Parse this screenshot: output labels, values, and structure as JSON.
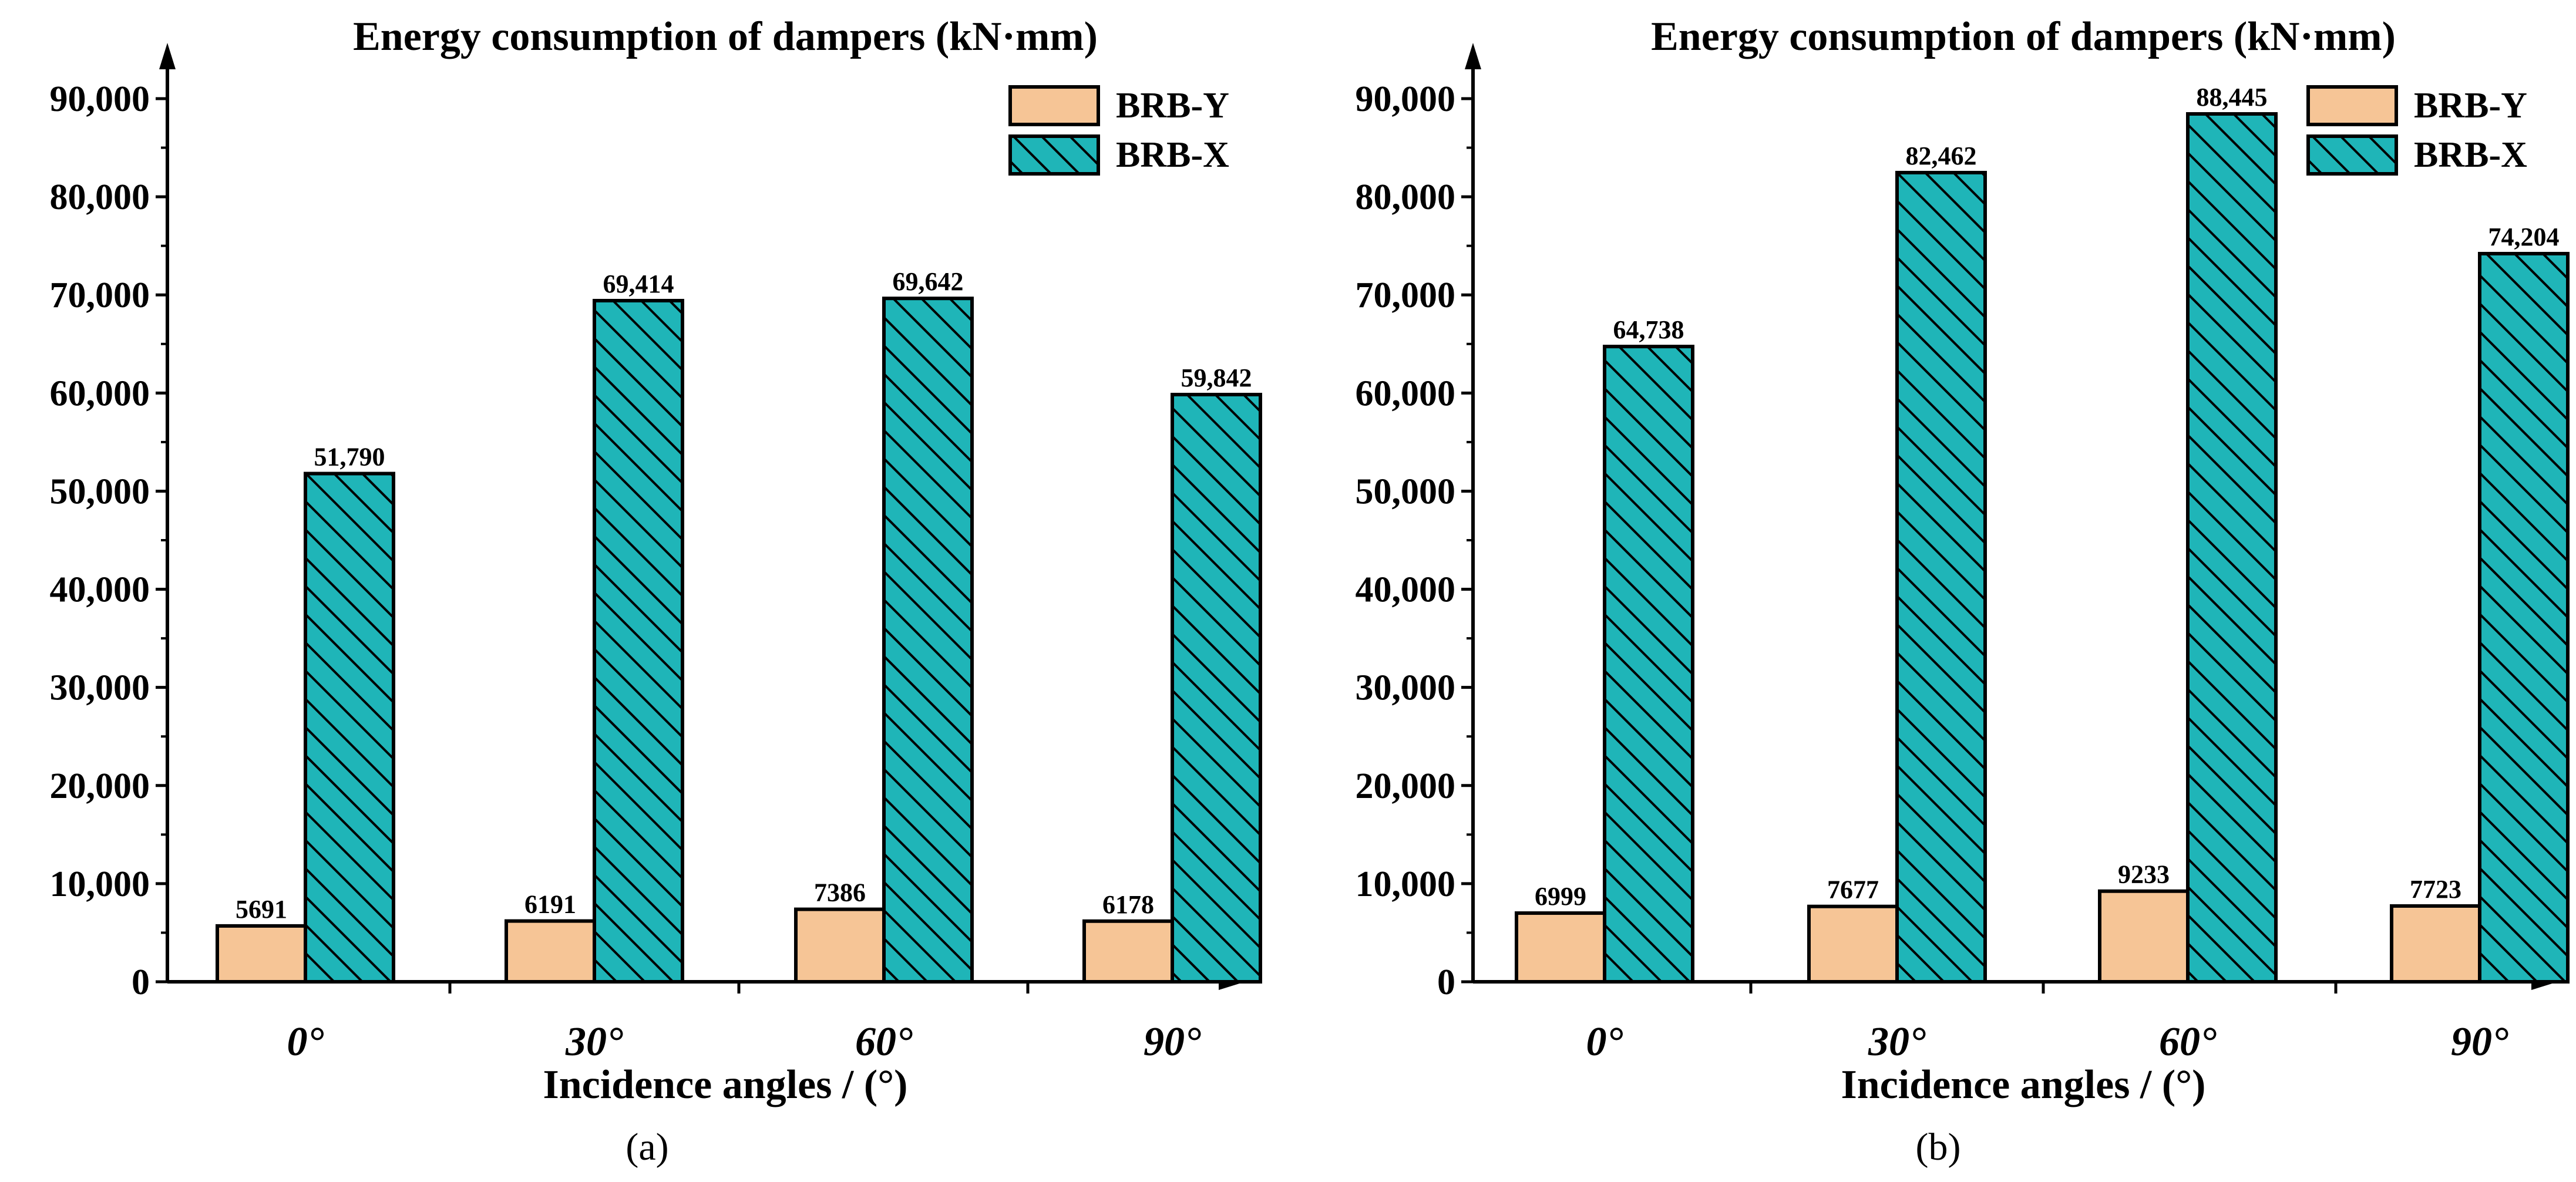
{
  "figure": {
    "panels": [
      "(a)",
      "(b)"
    ]
  },
  "colors": {
    "brb_y": "#F6C596",
    "brb_x": "#1FB5B8",
    "edge": "#000000"
  },
  "chart_data": [
    {
      "type": "bar",
      "panel_label": "(a)",
      "title": "Energy consumption of dampers (kN·mm)",
      "xlabel": "Incidence angles / (°)",
      "ylabel": "",
      "ylim": [
        0,
        90000
      ],
      "yticks": [
        0,
        10000,
        20000,
        30000,
        40000,
        50000,
        60000,
        70000,
        80000,
        90000
      ],
      "ytick_labels": [
        "0",
        "10,000",
        "20,000",
        "30,000",
        "40,000",
        "50,000",
        "60,000",
        "70,000",
        "80,000",
        "90,000"
      ],
      "categories": [
        "0°",
        "30°",
        "60°",
        "90°"
      ],
      "series": [
        {
          "name": "BRB-Y",
          "values": [
            5691,
            6191,
            7386,
            6178
          ],
          "labels": [
            "5691",
            "6191",
            "7386",
            "6178"
          ]
        },
        {
          "name": "BRB-X",
          "values": [
            51790,
            69414,
            69642,
            59842
          ],
          "labels": [
            "51,790",
            "69,414",
            "69,642",
            "59,842"
          ]
        }
      ],
      "legend": "top-right",
      "grid": false
    },
    {
      "type": "bar",
      "panel_label": "(b)",
      "title": "Energy consumption of dampers (kN·mm)",
      "xlabel": "Incidence angles / (°)",
      "ylabel": "",
      "ylim": [
        0,
        90000
      ],
      "yticks": [
        0,
        10000,
        20000,
        30000,
        40000,
        50000,
        60000,
        70000,
        80000,
        90000
      ],
      "ytick_labels": [
        "0",
        "10,000",
        "20,000",
        "30,000",
        "40,000",
        "50,000",
        "60,000",
        "70,000",
        "80,000",
        "90,000"
      ],
      "categories": [
        "0°",
        "30°",
        "60°",
        "90°"
      ],
      "series": [
        {
          "name": "BRB-Y",
          "values": [
            6999,
            7677,
            9233,
            7723
          ],
          "labels": [
            "6999",
            "7677",
            "9233",
            "7723"
          ]
        },
        {
          "name": "BRB-X",
          "values": [
            64738,
            82462,
            88445,
            74204
          ],
          "labels": [
            "64,738",
            "82,462",
            "88,445",
            "74,204"
          ]
        }
      ],
      "legend": "top-right",
      "grid": false
    }
  ]
}
